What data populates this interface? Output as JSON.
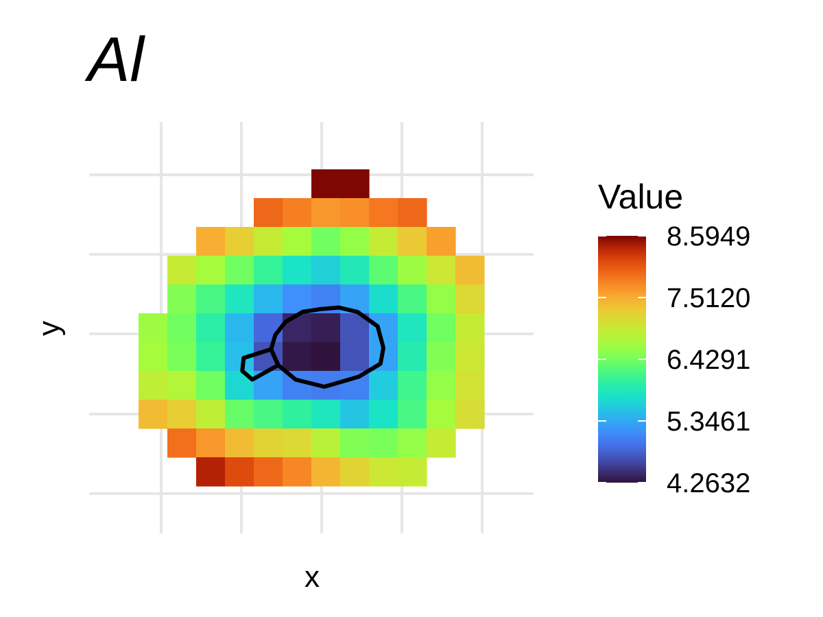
{
  "chart_data": {
    "type": "heatmap",
    "title": "Al",
    "xlabel": "x",
    "ylabel": "y",
    "grid": true,
    "legend": {
      "title": "Value",
      "position": "right",
      "min": 4.2632,
      "max": 8.5949,
      "ticks": [
        "8.5949",
        "7.5120",
        "6.4291",
        "5.3461",
        "4.2632"
      ],
      "tick_values": [
        8.5949,
        7.512,
        6.4291,
        5.3461,
        4.2632
      ]
    },
    "grid_size": {
      "cols": 12,
      "rows": 11
    },
    "row_order": "top-to-bottom",
    "cells": [
      [
        null,
        null,
        null,
        null,
        null,
        null,
        8.58,
        8.58,
        null,
        null,
        null,
        null
      ],
      [
        null,
        null,
        null,
        null,
        7.95,
        7.8,
        7.65,
        7.7,
        7.85,
        7.95,
        null,
        null
      ],
      [
        null,
        null,
        7.5,
        7.25,
        6.95,
        6.7,
        6.4,
        6.6,
        6.95,
        7.3,
        7.6,
        null
      ],
      [
        null,
        6.95,
        6.7,
        6.4,
        6.1,
        5.8,
        5.65,
        5.9,
        6.3,
        6.65,
        7.0,
        7.4
      ],
      [
        null,
        6.5,
        6.2,
        5.85,
        5.45,
        5.15,
        5.05,
        5.3,
        5.75,
        6.2,
        6.6,
        7.15
      ],
      [
        6.65,
        6.4,
        6.0,
        5.45,
        4.85,
        4.4,
        4.35,
        4.7,
        5.3,
        5.85,
        6.4,
        6.95
      ],
      [
        6.7,
        6.45,
        6.1,
        5.5,
        4.7,
        4.3,
        4.27,
        4.7,
        5.3,
        5.95,
        6.5,
        7.0
      ],
      [
        6.9,
        6.8,
        6.4,
        5.7,
        5.3,
        5.05,
        5.0,
        5.05,
        5.6,
        6.15,
        6.6,
        7.05
      ],
      [
        7.4,
        7.25,
        6.9,
        6.35,
        6.2,
        6.05,
        5.85,
        5.55,
        5.8,
        6.2,
        6.7,
        7.1
      ],
      [
        null,
        7.9,
        7.65,
        7.4,
        7.2,
        7.15,
        6.85,
        6.5,
        6.45,
        6.6,
        6.95,
        null
      ],
      [
        null,
        null,
        8.4,
        8.15,
        7.95,
        7.75,
        7.45,
        7.2,
        7.0,
        6.95,
        null,
        null
      ]
    ],
    "contour": {
      "level": 4.6,
      "main_loop": [
        [
          6.35,
          4.85
        ],
        [
          5.7,
          4.95
        ],
        [
          5.1,
          5.3
        ],
        [
          4.75,
          5.75
        ],
        [
          4.6,
          6.25
        ],
        [
          4.85,
          6.8
        ],
        [
          5.45,
          7.3
        ],
        [
          6.45,
          7.55
        ],
        [
          7.65,
          7.2
        ],
        [
          8.4,
          6.75
        ],
        [
          8.5,
          6.2
        ],
        [
          8.3,
          5.45
        ],
        [
          7.6,
          4.95
        ],
        [
          6.95,
          4.8
        ],
        [
          6.35,
          4.85
        ]
      ],
      "side_loop": [
        [
          4.6,
          6.25
        ],
        [
          3.65,
          6.55
        ],
        [
          3.6,
          7.0
        ],
        [
          3.95,
          7.3
        ],
        [
          4.85,
          6.8
        ],
        [
          4.6,
          6.25
        ]
      ]
    }
  }
}
